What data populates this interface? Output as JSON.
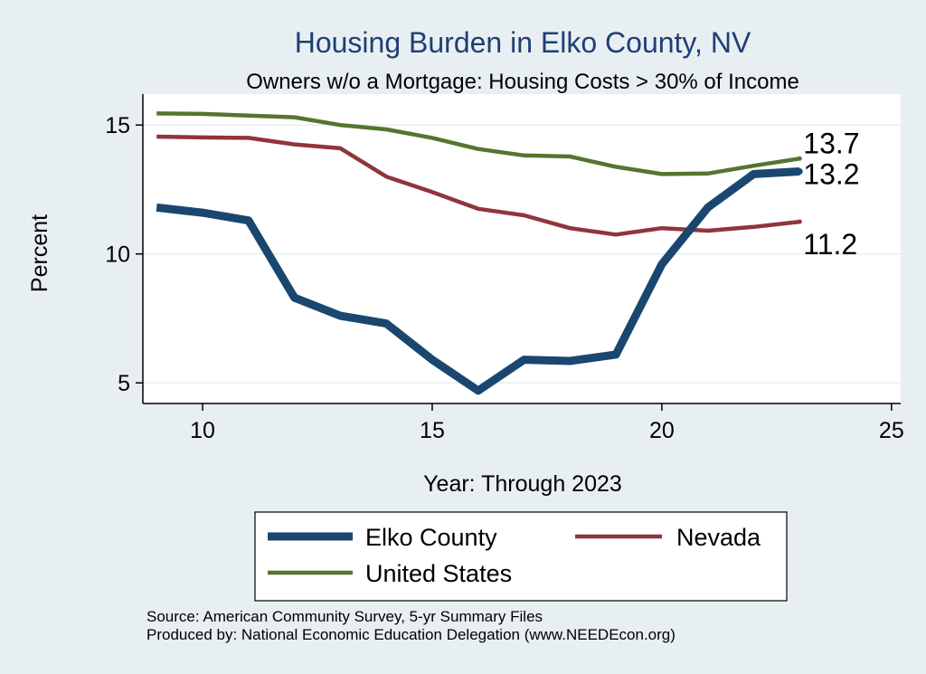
{
  "chart_data": {
    "type": "line",
    "title": "Housing Burden in Elko County, NV",
    "subtitle": "Owners w/o a Mortgage: Housing Costs > 30% of Income",
    "xlabel": "Year: Through 2023",
    "ylabel": "Percent",
    "xlim": [
      8.7,
      25.2
    ],
    "ylim": [
      4.2,
      16.2
    ],
    "xticks": [
      10,
      15,
      20,
      25
    ],
    "yticks": [
      5,
      10,
      15
    ],
    "grid": "horizontal",
    "x": [
      9,
      10,
      11,
      12,
      13,
      14,
      15,
      16,
      17,
      18,
      19,
      20,
      21,
      22,
      23
    ],
    "series": [
      {
        "name": "Elko County",
        "color": "#1a476f",
        "values": [
          11.8,
          11.6,
          11.3,
          8.3,
          7.6,
          7.3,
          5.9,
          4.7,
          5.9,
          5.85,
          6.1,
          9.6,
          11.8,
          13.1,
          13.2
        ],
        "end_label": "13.2"
      },
      {
        "name": "Nevada",
        "color": "#90353b",
        "values": [
          14.55,
          14.52,
          14.5,
          14.25,
          14.1,
          13.0,
          12.4,
          11.75,
          11.5,
          11.0,
          10.75,
          11.0,
          10.9,
          11.05,
          11.25
        ],
        "end_label": "11.2"
      },
      {
        "name": "United States",
        "color": "#55752f",
        "values": [
          15.45,
          15.43,
          15.37,
          15.3,
          15.0,
          14.83,
          14.5,
          14.07,
          13.82,
          13.78,
          13.38,
          13.1,
          13.12,
          13.42,
          13.7
        ],
        "end_label": "13.7"
      }
    ],
    "legend": {
      "position": "bottom",
      "entries": [
        "Elko County",
        "Nevada",
        "United States"
      ]
    }
  },
  "footer": {
    "source": "Source: American Community Survey, 5-yr Summary Files",
    "produced_by": "Produced by: National Economic Education Delegation (www.NEEDEcon.org)"
  }
}
